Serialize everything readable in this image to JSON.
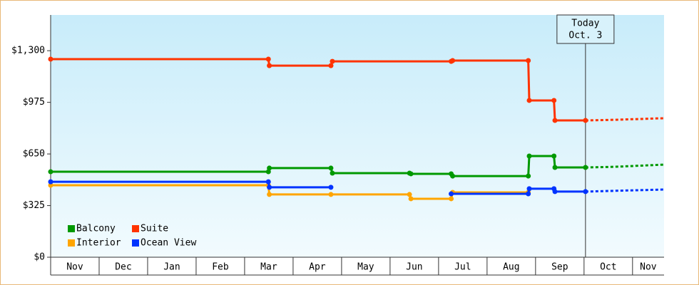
{
  "chart_data": {
    "type": "line",
    "step": true,
    "categories": [
      "Nov",
      "Dec",
      "Jan",
      "Feb",
      "Mar",
      "Apr",
      "May",
      "Jun",
      "Jul",
      "Aug",
      "Sep",
      "Oct",
      "Nov"
    ],
    "xlim": [
      0,
      12.65
    ],
    "ylim": [
      0,
      1525
    ],
    "yticks": [
      {
        "value": 0,
        "label": "$0"
      },
      {
        "value": 325,
        "label": "$325"
      },
      {
        "value": 650,
        "label": "$650"
      },
      {
        "value": 975,
        "label": "$975"
      },
      {
        "value": 1300,
        "label": "$1,300"
      }
    ],
    "today": {
      "x": 11.03,
      "label": "Today",
      "date": "Oct. 3"
    },
    "legend": "lower left",
    "series": [
      {
        "name": "Balcony",
        "color": "#009900",
        "x": [
          0,
          4.49,
          4.51,
          5.78,
          5.81,
          7.4,
          7.43,
          8.26,
          8.29,
          9.85,
          9.87,
          10.38,
          10.4,
          11.03
        ],
        "values": [
          538,
          538,
          561,
          561,
          529,
          529,
          525,
          525,
          511,
          511,
          637,
          637,
          565,
          565
        ],
        "forecast_x": [
          11.03,
          11.62,
          12.65
        ],
        "forecast_values": [
          565,
          569,
          583
        ]
      },
      {
        "name": "Suite",
        "color": "#ff3300",
        "x": [
          0,
          4.49,
          4.51,
          5.78,
          5.81,
          8.26,
          8.29,
          9.85,
          9.87,
          10.38,
          10.4,
          11.03
        ],
        "values": [
          1247,
          1247,
          1206,
          1206,
          1233,
          1233,
          1238,
          1238,
          987,
          987,
          861,
          861
        ],
        "forecast_x": [
          11.03,
          11.62,
          12.65
        ],
        "forecast_values": [
          861,
          865,
          875
        ]
      },
      {
        "name": "Interior",
        "color": "#ffa500",
        "x": [
          0,
          4.49,
          4.51,
          5.78,
          7.4,
          7.43,
          8.26,
          8.29,
          9.85
        ],
        "values": [
          453,
          453,
          395,
          395,
          395,
          368,
          368,
          408,
          408
        ]
      },
      {
        "name": "Ocean View",
        "color": "#0033ff",
        "x": [
          0,
          4.49,
          4.51,
          5.78,
          null,
          8.26,
          9.85,
          9.87,
          10.38,
          10.4,
          11.03
        ],
        "values": [
          475,
          475,
          440,
          440,
          null,
          399,
          399,
          431,
          431,
          413,
          413
        ],
        "forecast_x": [
          11.03,
          11.62,
          12.65
        ],
        "forecast_values": [
          413,
          418,
          426
        ]
      }
    ]
  }
}
